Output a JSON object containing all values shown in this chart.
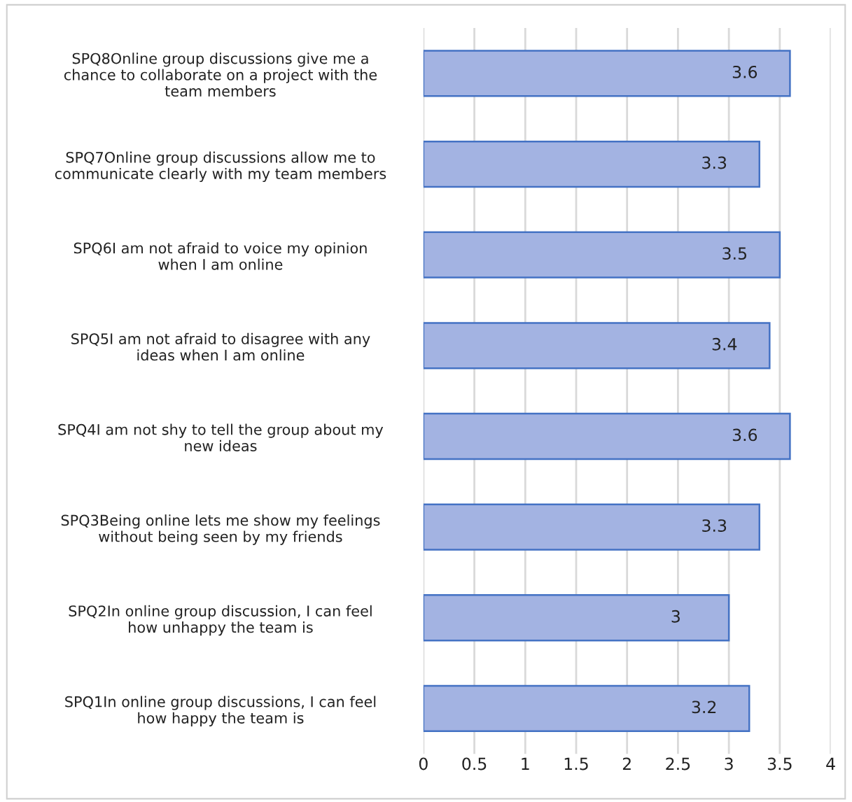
{
  "chart_data": {
    "type": "bar",
    "orientation": "horizontal",
    "categories": [
      "SPQ8Online group discussions give me a\nchance to collaborate on a project with the\nteam members",
      "SPQ7Online group discussions allow me to\ncommunicate clearly with my team members",
      "SPQ6I am not afraid to voice my opinion\nwhen I am online",
      "SPQ5I am not afraid to disagree with any\nideas when I am online",
      "SPQ4I am not shy to tell the group about my\nnew ideas",
      "SPQ3Being online lets me show my feelings\nwithout being seen by my friends",
      "SPQ2In online group discussion, I can feel\nhow unhappy the team is",
      "SPQ1In online group discussions, I can feel\nhow happy the team is"
    ],
    "values": [
      3.6,
      3.3,
      3.5,
      3.4,
      3.6,
      3.3,
      3,
      3.2
    ],
    "color": "#a3b3e2",
    "xlim": [
      0,
      4
    ],
    "xticks": [
      0,
      0.5,
      1,
      1.5,
      2,
      2.5,
      3,
      3.5,
      4
    ],
    "grid": "x",
    "data_labels": true,
    "legend": false
  }
}
